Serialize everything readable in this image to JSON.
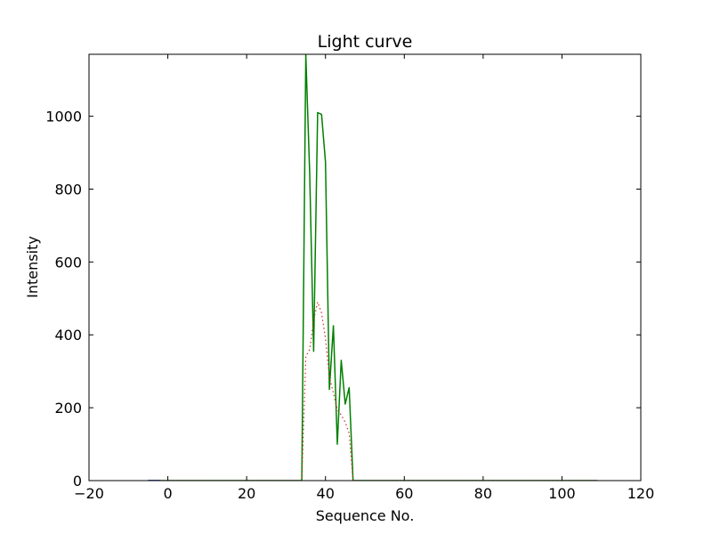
{
  "chart_data": {
    "type": "line",
    "title": "Light curve",
    "xlabel": "Sequence No.",
    "ylabel": "Intensity",
    "xlim": [
      -20,
      120
    ],
    "ylim": [
      0,
      1170
    ],
    "xticks": [
      -20,
      0,
      20,
      40,
      60,
      80,
      100,
      120
    ],
    "xtick_labels": [
      "−20",
      "0",
      "20",
      "40",
      "60",
      "80",
      "100",
      "120"
    ],
    "yticks": [
      0,
      200,
      400,
      600,
      800,
      1000
    ],
    "ytick_labels": [
      "0",
      "200",
      "400",
      "600",
      "800",
      "1000"
    ],
    "grid": false,
    "legend": "none",
    "series": [
      {
        "color": "#008000",
        "style": "solid",
        "x": [
          -5,
          0,
          10,
          20,
          30,
          33,
          34,
          35,
          36,
          37,
          38,
          39,
          40,
          41,
          42,
          43,
          44,
          45,
          46,
          47,
          48,
          60,
          80,
          100,
          109
        ],
        "y": [
          0,
          0,
          0,
          0,
          0,
          0,
          0,
          1170,
          840,
          355,
          1010,
          1005,
          875,
          250,
          425,
          100,
          330,
          210,
          255,
          0,
          0,
          0,
          0,
          0,
          0
        ]
      },
      {
        "color": "#d62728",
        "style": "dotted",
        "x": [
          -5,
          0,
          10,
          20,
          30,
          33,
          34,
          35,
          36,
          37,
          38,
          39,
          40,
          41,
          42,
          43,
          44,
          45,
          46,
          47,
          48,
          60,
          80,
          100,
          109
        ],
        "y": [
          0,
          0,
          0,
          0,
          0,
          0,
          0,
          340,
          360,
          440,
          490,
          460,
          390,
          285,
          240,
          195,
          180,
          160,
          130,
          0,
          0,
          0,
          0,
          0,
          0
        ]
      },
      {
        "color": "#0000ff",
        "style": "solid",
        "x": [
          -5,
          -2
        ],
        "y": [
          0,
          0
        ]
      }
    ]
  }
}
